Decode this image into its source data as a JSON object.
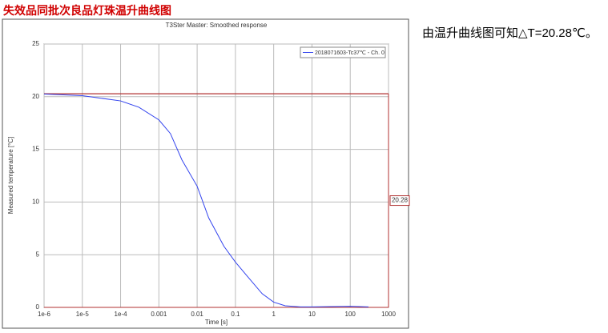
{
  "header": {
    "title": "失效品同批次良品灯珠温升曲线图"
  },
  "note": "由温升曲线图可知△T=20.28℃。",
  "chart_data": {
    "type": "line",
    "title": "T3Ster Master: Smoothed response",
    "x_label": "Time [s]",
    "y_label": "Measured temperature [°C]",
    "xscale": "log",
    "grid": true,
    "legend": "upper right",
    "xlim": [
      1e-06,
      1000
    ],
    "xticks": [
      {
        "value": 1e-06,
        "label": "1e-6"
      },
      {
        "value": 1e-05,
        "label": "1e-5"
      },
      {
        "value": 0.0001,
        "label": "1e-4"
      },
      0.001,
      0.01,
      0.1,
      1,
      10,
      100,
      1000
    ],
    "ylim": [
      0,
      25
    ],
    "yticks": [
      0,
      5,
      10,
      15,
      20,
      25
    ],
    "hline": 20.28,
    "hline_color": "#b03030",
    "x": [
      1e-06,
      1e-05,
      0.0001,
      0.0003,
      0.001,
      0.002,
      0.004,
      0.01,
      0.02,
      0.05,
      0.1,
      0.2,
      0.5,
      1,
      2,
      5,
      10,
      100,
      300
    ],
    "series": [
      {
        "name": "2018071603-Tc37℃ - Ch. 0",
        "color": "#3344ee",
        "values": [
          20.25,
          20.1,
          19.6,
          19.0,
          17.8,
          16.5,
          14.0,
          11.5,
          8.5,
          5.8,
          4.3,
          3.0,
          1.3,
          0.5,
          0.15,
          0.05,
          0.05,
          0.1,
          0.05
        ]
      }
    ]
  }
}
